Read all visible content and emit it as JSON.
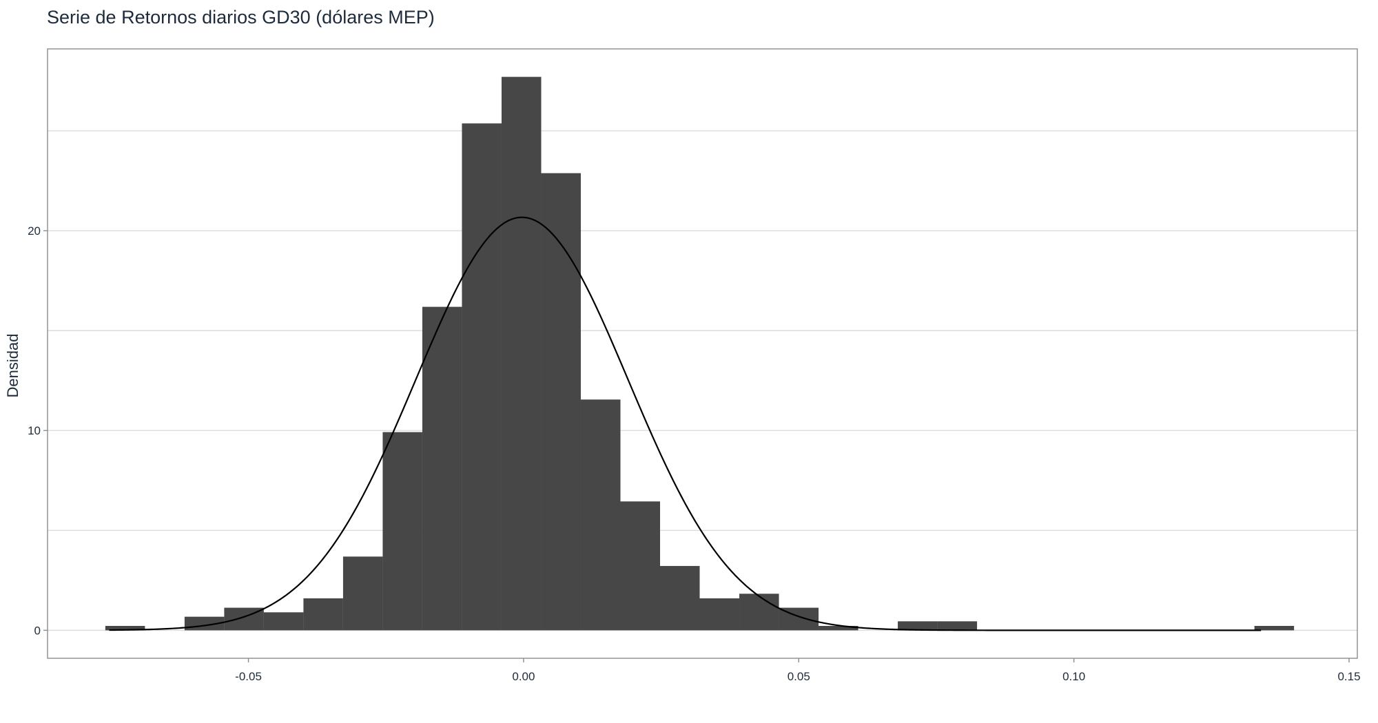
{
  "chart_data": {
    "type": "histogram",
    "title": "Serie de Retornos diarios GD30 (dólares MEP)",
    "xlabel": "",
    "ylabel": "Densidad",
    "xlim": [
      -0.0865,
      0.1515
    ],
    "ylim": [
      -1.4,
      29.1
    ],
    "x_ticks": [
      -0.05,
      0.0,
      0.05,
      0.1,
      0.15
    ],
    "x_tick_labels": [
      "-0.05",
      "0.00",
      "0.05",
      "0.10",
      "0.15"
    ],
    "y_ticks": [
      0,
      10,
      20
    ],
    "y_tick_labels": [
      "0",
      "10",
      "20"
    ],
    "y_minor_gridlines": [
      5,
      15,
      25
    ],
    "grid": "horizontal",
    "bars": [
      {
        "x0": -0.076,
        "x1": -0.0688,
        "density": 0.22
      },
      {
        "x0": -0.0688,
        "x1": -0.0616,
        "density": 0.0
      },
      {
        "x0": -0.0616,
        "x1": -0.0544,
        "density": 0.68
      },
      {
        "x0": -0.0544,
        "x1": -0.0472,
        "density": 1.13
      },
      {
        "x0": -0.0472,
        "x1": -0.04,
        "density": 0.9
      },
      {
        "x0": -0.04,
        "x1": -0.0328,
        "density": 1.6
      },
      {
        "x0": -0.0328,
        "x1": -0.0256,
        "density": 3.69
      },
      {
        "x0": -0.0256,
        "x1": -0.0184,
        "density": 9.92
      },
      {
        "x0": -0.0184,
        "x1": -0.0112,
        "density": 16.19
      },
      {
        "x0": -0.0112,
        "x1": -0.004,
        "density": 25.37
      },
      {
        "x0": -0.004,
        "x1": 0.0032,
        "density": 27.7
      },
      {
        "x0": 0.0032,
        "x1": 0.0104,
        "density": 22.88
      },
      {
        "x0": 0.0104,
        "x1": 0.0176,
        "density": 11.55
      },
      {
        "x0": 0.0176,
        "x1": 0.0248,
        "density": 6.45
      },
      {
        "x0": 0.0248,
        "x1": 0.032,
        "density": 3.22
      },
      {
        "x0": 0.032,
        "x1": 0.0392,
        "density": 1.6
      },
      {
        "x0": 0.0392,
        "x1": 0.0464,
        "density": 1.83
      },
      {
        "x0": 0.0464,
        "x1": 0.0536,
        "density": 1.13
      },
      {
        "x0": 0.0536,
        "x1": 0.0608,
        "density": 0.22
      },
      {
        "x0": 0.0608,
        "x1": 0.068,
        "density": 0.0
      },
      {
        "x0": 0.068,
        "x1": 0.0752,
        "density": 0.45
      },
      {
        "x0": 0.0752,
        "x1": 0.0824,
        "density": 0.45
      },
      {
        "x0": 0.1328,
        "x1": 0.14,
        "density": 0.22
      }
    ],
    "density_curve": {
      "distribution": "normal",
      "mean": -0.0003,
      "sd": 0.0193,
      "x_range": [
        -0.0753,
        0.134
      ]
    }
  }
}
